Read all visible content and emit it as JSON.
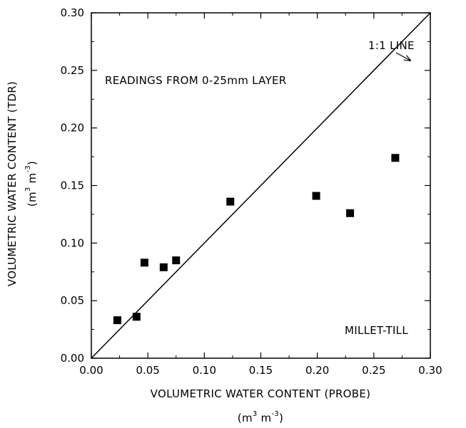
{
  "chart_data": {
    "type": "scatter",
    "title": "",
    "xlabel": "VOLUMETRIC WATER CONTENT (PROBE)",
    "ylabel": "VOLUMETRIC WATER CONTENT (TDR)",
    "unit_base": "m",
    "unit_exp": "3",
    "unit_neg_exp": "-3",
    "xlim": [
      0.0,
      0.3
    ],
    "ylim": [
      0.0,
      0.3
    ],
    "xticks": [
      "0.00",
      "0.05",
      "0.10",
      "0.15",
      "0.20",
      "0.25",
      "0.30"
    ],
    "yticks": [
      "0.00",
      "0.05",
      "0.10",
      "0.15",
      "0.20",
      "0.25",
      "0.30"
    ],
    "grid": false,
    "legend": "none",
    "reference_line": {
      "label": "1:1 LINE",
      "from": [
        0.0,
        0.0
      ],
      "to": [
        0.3,
        0.3
      ]
    },
    "annotations": {
      "readings": "READINGS FROM 0-25mm LAYER",
      "site": "MILLET-TILL"
    },
    "marker_color": "#000000",
    "x": [
      0.023,
      0.04,
      0.047,
      0.064,
      0.075,
      0.123,
      0.199,
      0.229,
      0.269
    ],
    "y": [
      0.033,
      0.036,
      0.083,
      0.079,
      0.085,
      0.136,
      0.141,
      0.126,
      0.174
    ]
  }
}
